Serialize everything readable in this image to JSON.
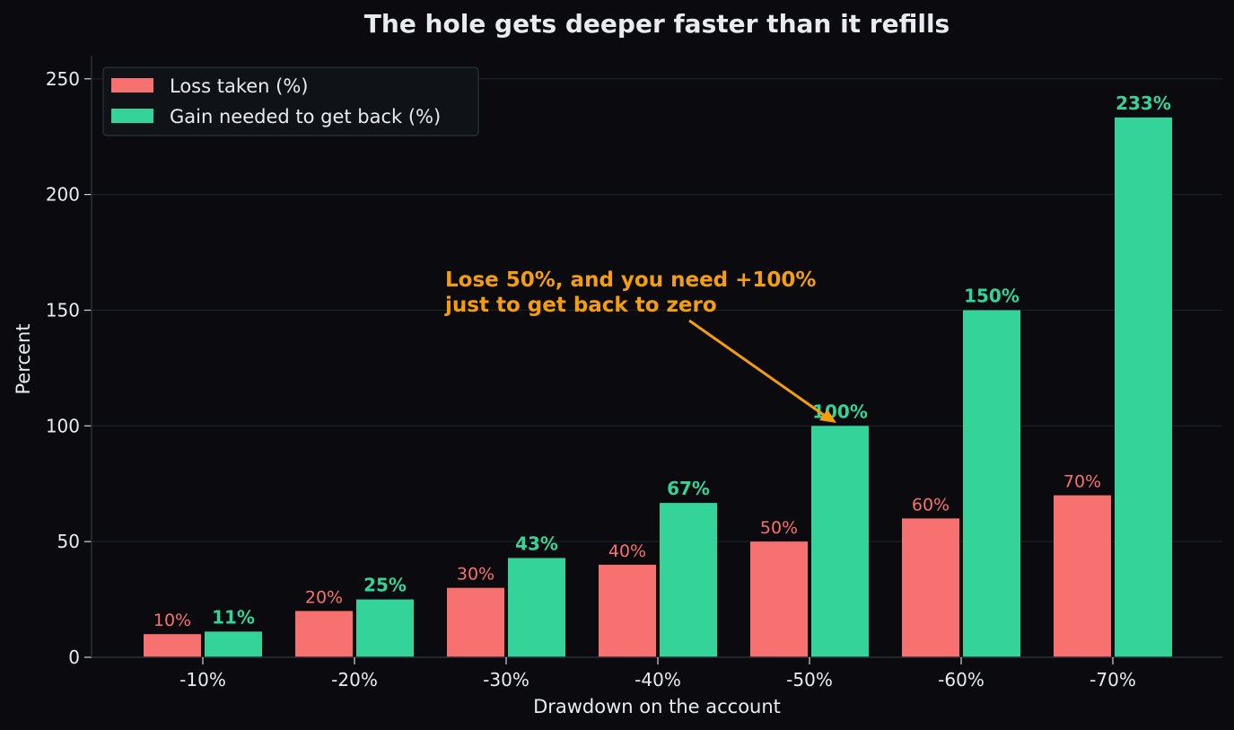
{
  "chart_data": {
    "type": "bar",
    "title": "The hole gets deeper faster than it refills",
    "xlabel": "Drawdown on the account",
    "ylabel": "Percent",
    "ylim": [
      0,
      260
    ],
    "yticks": [
      0,
      50,
      100,
      150,
      200,
      250
    ],
    "grid": "horizontal",
    "legend_position": "top-left",
    "categories": [
      "-10%",
      "-20%",
      "-30%",
      "-40%",
      "-50%",
      "-60%",
      "-70%"
    ],
    "series": [
      {
        "name": "Loss taken (%)",
        "values": [
          10,
          20,
          30,
          40,
          50,
          60,
          70
        ],
        "labels": [
          "10%",
          "20%",
          "30%",
          "40%",
          "50%",
          "60%",
          "70%"
        ],
        "color": "#f87171"
      },
      {
        "name": "Gain needed to get back (%)",
        "values": [
          11.1,
          25,
          42.9,
          66.7,
          100,
          150,
          233.3
        ],
        "labels": [
          "11%",
          "25%",
          "43%",
          "67%",
          "100%",
          "150%",
          "233%"
        ],
        "color": "#34d399"
      }
    ],
    "annotation": {
      "lines": [
        "Lose 50%, and you need +100%",
        "just to get back to zero"
      ],
      "target_category": "-50%",
      "target_series": 1,
      "color": "#f59e0b"
    }
  }
}
